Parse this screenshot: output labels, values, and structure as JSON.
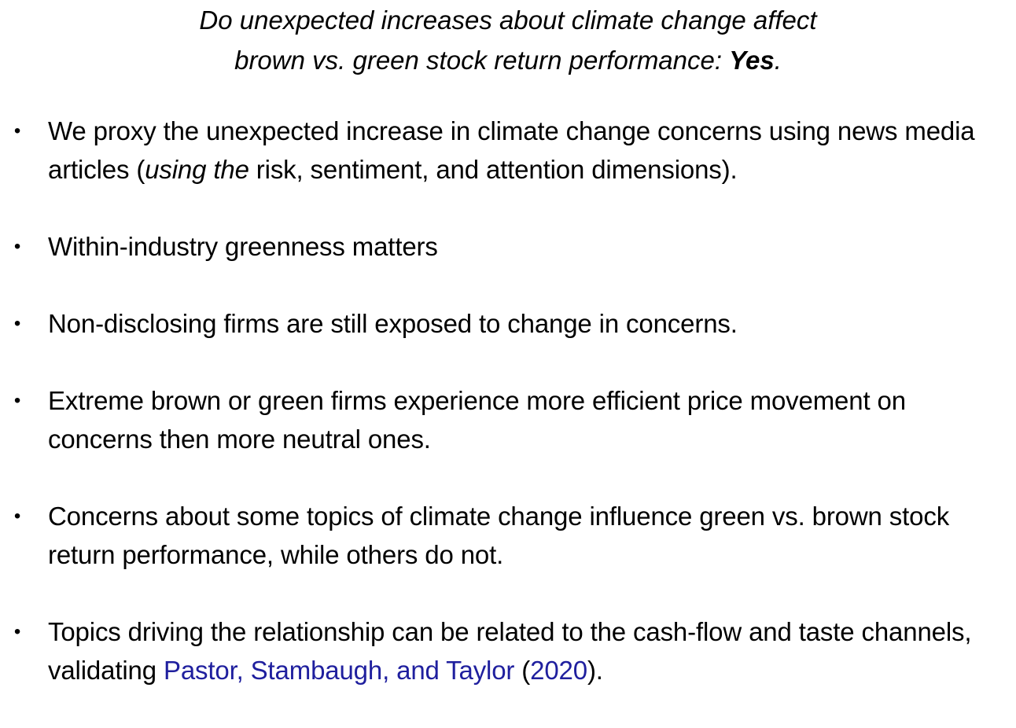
{
  "title": {
    "line1": "Do unexpected increases about climate change affect",
    "line2_prefix": "brown vs. green stock return performance: ",
    "line2_bold": "Yes",
    "line2_suffix": "."
  },
  "bullet_glyph": "•",
  "bullets": [
    {
      "part1": "We proxy the unexpected increase in climate change concerns using news media articles (",
      "italic": "using the",
      "part2": " risk, sentiment, and attention dimensions)."
    },
    {
      "text": "Within-industry greenness matters"
    },
    {
      "text": "Non-disclosing firms are still exposed to change in concerns."
    },
    {
      "text": "Extreme brown or green firms experience more efficient price movement on concerns then more neutral ones."
    },
    {
      "text": "Concerns about some topics of climate change influence green vs. brown stock return performance, while others do not."
    },
    {
      "part1": "Topics driving the relationship can be related to the cash-flow and taste channels, validating ",
      "link_authors": "Pastor, Stambaugh, and Taylor",
      "paren_open": " (",
      "link_year": "2020",
      "paren_close": ")."
    }
  ],
  "colors": {
    "text": "#000000",
    "link": "#1f1f9e",
    "background": "#ffffff"
  }
}
